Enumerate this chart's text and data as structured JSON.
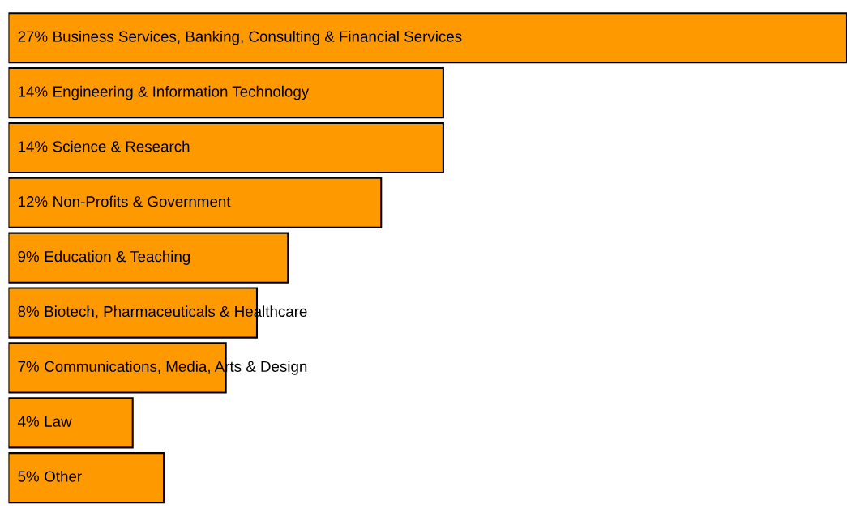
{
  "chart_data": {
    "type": "bar",
    "orientation": "horizontal",
    "categories": [
      "Business Services, Banking, Consulting & Financial Services",
      "Engineering & Information Technology",
      "Science & Research",
      "Non-Profits & Government",
      "Education & Teaching",
      "Biotech, Pharmaceuticals & Healthcare",
      "Communications, Media, Arts & Design",
      "Law",
      "Other"
    ],
    "values": [
      27,
      14,
      14,
      12,
      9,
      8,
      7,
      4,
      5
    ],
    "value_labels": [
      "27%",
      "14%",
      "14%",
      "12%",
      "9%",
      "8%",
      "7%",
      "4%",
      "5%"
    ],
    "color": "#ff9900"
  }
}
